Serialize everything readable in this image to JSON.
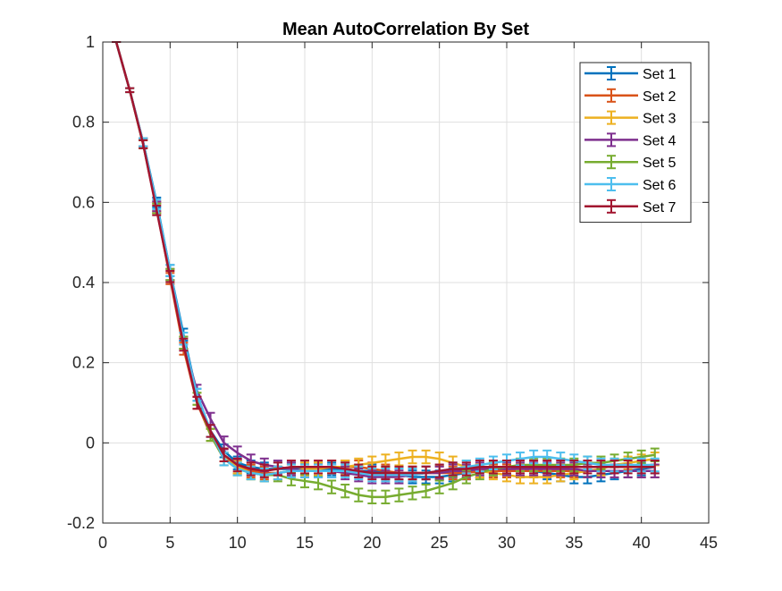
{
  "chart_data": {
    "type": "line",
    "title": "Mean AutoCorrelation By Set",
    "xlabel": "",
    "ylabel": "",
    "xlim": [
      0,
      45
    ],
    "ylim": [
      -0.2,
      1
    ],
    "xticks": [
      0,
      5,
      10,
      15,
      20,
      25,
      30,
      35,
      40,
      45
    ],
    "yticks": [
      -0.2,
      0,
      0.2,
      0.4,
      0.6,
      0.8,
      1
    ],
    "xtick_labels": [
      "0",
      "5",
      "10",
      "15",
      "20",
      "25",
      "30",
      "35",
      "40",
      "45"
    ],
    "ytick_labels": [
      "-0.2",
      "0",
      "0.2",
      "0.4",
      "0.6",
      "0.8",
      "1"
    ],
    "grid": true,
    "error_bars": true,
    "legend_position": "top-right",
    "x": [
      1,
      2,
      3,
      4,
      5,
      6,
      7,
      8,
      9,
      10,
      11,
      12,
      13,
      14,
      15,
      16,
      17,
      18,
      19,
      20,
      21,
      22,
      23,
      24,
      25,
      26,
      27,
      28,
      29,
      30,
      31,
      32,
      33,
      34,
      35,
      36,
      37,
      38,
      39,
      40,
      41
    ],
    "series": [
      {
        "name": "Set 1",
        "color": "#0072BD",
        "values": [
          1,
          0.88,
          0.75,
          0.6,
          0.43,
          0.27,
          0.12,
          0.03,
          -0.02,
          -0.05,
          -0.06,
          -0.065,
          -0.065,
          -0.065,
          -0.065,
          -0.065,
          -0.065,
          -0.065,
          -0.07,
          -0.07,
          -0.075,
          -0.08,
          -0.085,
          -0.085,
          -0.085,
          -0.08,
          -0.075,
          -0.07,
          -0.07,
          -0.07,
          -0.07,
          -0.07,
          -0.075,
          -0.08,
          -0.085,
          -0.085,
          -0.08,
          -0.075,
          -0.07,
          -0.065,
          -0.06
        ],
        "errors": [
          0,
          0.005,
          0.01,
          0.012,
          0.014,
          0.015,
          0.015,
          0.015,
          0.016,
          0.016,
          0.016,
          0.016,
          0.016,
          0.016,
          0.016,
          0.016,
          0.016,
          0.016,
          0.016,
          0.016,
          0.016,
          0.016,
          0.016,
          0.016,
          0.016,
          0.016,
          0.016,
          0.016,
          0.016,
          0.016,
          0.016,
          0.016,
          0.016,
          0.016,
          0.016,
          0.016,
          0.016,
          0.016,
          0.016,
          0.016,
          0.016
        ]
      },
      {
        "name": "Set 2",
        "color": "#D95319",
        "values": [
          1,
          0.88,
          0.745,
          0.585,
          0.41,
          0.235,
          0.1,
          0.02,
          -0.04,
          -0.06,
          -0.07,
          -0.075,
          -0.075,
          -0.07,
          -0.07,
          -0.065,
          -0.06,
          -0.06,
          -0.06,
          -0.065,
          -0.07,
          -0.075,
          -0.075,
          -0.075,
          -0.075,
          -0.075,
          -0.075,
          -0.07,
          -0.07,
          -0.07,
          -0.07,
          -0.07,
          -0.07,
          -0.07,
          -0.07,
          -0.07,
          -0.07,
          -0.07,
          -0.07,
          -0.07,
          -0.07
        ],
        "errors": [
          0,
          0.005,
          0.01,
          0.012,
          0.014,
          0.015,
          0.015,
          0.015,
          0.016,
          0.016,
          0.016,
          0.016,
          0.016,
          0.016,
          0.016,
          0.016,
          0.016,
          0.016,
          0.016,
          0.016,
          0.016,
          0.016,
          0.016,
          0.016,
          0.016,
          0.016,
          0.016,
          0.016,
          0.016,
          0.016,
          0.016,
          0.016,
          0.016,
          0.016,
          0.016,
          0.016,
          0.016,
          0.016,
          0.016,
          0.016,
          0.016
        ]
      },
      {
        "name": "Set 3",
        "color": "#EDB120",
        "values": [
          1,
          0.88,
          0.75,
          0.59,
          0.42,
          0.25,
          0.11,
          0.02,
          -0.03,
          -0.06,
          -0.075,
          -0.08,
          -0.075,
          -0.07,
          -0.065,
          -0.065,
          -0.06,
          -0.06,
          -0.055,
          -0.05,
          -0.045,
          -0.04,
          -0.035,
          -0.035,
          -0.04,
          -0.05,
          -0.06,
          -0.07,
          -0.075,
          -0.08,
          -0.085,
          -0.085,
          -0.085,
          -0.08,
          -0.075,
          -0.07,
          -0.065,
          -0.055,
          -0.05,
          -0.045,
          -0.04
        ],
        "errors": [
          0,
          0.005,
          0.01,
          0.012,
          0.014,
          0.015,
          0.015,
          0.015,
          0.016,
          0.016,
          0.016,
          0.016,
          0.016,
          0.016,
          0.016,
          0.016,
          0.016,
          0.016,
          0.016,
          0.016,
          0.016,
          0.016,
          0.016,
          0.016,
          0.016,
          0.016,
          0.016,
          0.016,
          0.016,
          0.016,
          0.016,
          0.016,
          0.016,
          0.016,
          0.016,
          0.016,
          0.016,
          0.016,
          0.016,
          0.016,
          0.016
        ]
      },
      {
        "name": "Set 4",
        "color": "#7E2F8E",
        "values": [
          1,
          0.88,
          0.75,
          0.59,
          0.42,
          0.25,
          0.13,
          0.06,
          0.0,
          -0.025,
          -0.045,
          -0.055,
          -0.06,
          -0.065,
          -0.07,
          -0.07,
          -0.07,
          -0.075,
          -0.08,
          -0.085,
          -0.085,
          -0.085,
          -0.08,
          -0.075,
          -0.075,
          -0.07,
          -0.07,
          -0.065,
          -0.065,
          -0.065,
          -0.065,
          -0.065,
          -0.065,
          -0.065,
          -0.065,
          -0.07,
          -0.07,
          -0.07,
          -0.07,
          -0.07,
          -0.07
        ],
        "errors": [
          0,
          0.005,
          0.01,
          0.012,
          0.014,
          0.015,
          0.015,
          0.015,
          0.016,
          0.016,
          0.016,
          0.016,
          0.016,
          0.016,
          0.016,
          0.016,
          0.016,
          0.016,
          0.016,
          0.016,
          0.016,
          0.016,
          0.016,
          0.016,
          0.016,
          0.016,
          0.016,
          0.016,
          0.016,
          0.016,
          0.016,
          0.016,
          0.016,
          0.016,
          0.016,
          0.016,
          0.016,
          0.016,
          0.016,
          0.016,
          0.016
        ]
      },
      {
        "name": "Set 5",
        "color": "#77AC30",
        "values": [
          1,
          0.88,
          0.745,
          0.585,
          0.42,
          0.25,
          0.11,
          0.02,
          -0.04,
          -0.065,
          -0.075,
          -0.08,
          -0.08,
          -0.09,
          -0.095,
          -0.1,
          -0.11,
          -0.12,
          -0.13,
          -0.135,
          -0.135,
          -0.13,
          -0.125,
          -0.12,
          -0.11,
          -0.1,
          -0.085,
          -0.075,
          -0.065,
          -0.06,
          -0.055,
          -0.055,
          -0.055,
          -0.055,
          -0.055,
          -0.05,
          -0.05,
          -0.045,
          -0.04,
          -0.035,
          -0.03
        ],
        "errors": [
          0,
          0.005,
          0.01,
          0.012,
          0.014,
          0.015,
          0.015,
          0.015,
          0.016,
          0.016,
          0.016,
          0.016,
          0.016,
          0.016,
          0.016,
          0.016,
          0.016,
          0.016,
          0.016,
          0.016,
          0.016,
          0.016,
          0.016,
          0.016,
          0.016,
          0.016,
          0.016,
          0.016,
          0.016,
          0.016,
          0.016,
          0.016,
          0.016,
          0.016,
          0.016,
          0.016,
          0.016,
          0.016,
          0.016,
          0.016,
          0.016
        ]
      },
      {
        "name": "Set 6",
        "color": "#4DBEEE",
        "values": [
          1,
          0.88,
          0.75,
          0.595,
          0.43,
          0.26,
          0.12,
          0.03,
          -0.04,
          -0.065,
          -0.075,
          -0.08,
          -0.075,
          -0.07,
          -0.07,
          -0.07,
          -0.07,
          -0.07,
          -0.075,
          -0.08,
          -0.08,
          -0.08,
          -0.08,
          -0.075,
          -0.07,
          -0.065,
          -0.06,
          -0.055,
          -0.05,
          -0.045,
          -0.04,
          -0.035,
          -0.035,
          -0.04,
          -0.045,
          -0.05,
          -0.055,
          -0.055,
          -0.055,
          -0.055,
          -0.055
        ],
        "errors": [
          0,
          0.005,
          0.01,
          0.012,
          0.014,
          0.015,
          0.015,
          0.015,
          0.016,
          0.016,
          0.016,
          0.016,
          0.016,
          0.016,
          0.016,
          0.016,
          0.016,
          0.016,
          0.016,
          0.016,
          0.016,
          0.016,
          0.016,
          0.016,
          0.016,
          0.016,
          0.016,
          0.016,
          0.016,
          0.016,
          0.016,
          0.016,
          0.016,
          0.016,
          0.016,
          0.016,
          0.016,
          0.016,
          0.016,
          0.016,
          0.016
        ]
      },
      {
        "name": "Set 7",
        "color": "#A2142F",
        "values": [
          1,
          0.88,
          0.745,
          0.58,
          0.415,
          0.245,
          0.1,
          0.03,
          -0.03,
          -0.055,
          -0.065,
          -0.07,
          -0.065,
          -0.06,
          -0.06,
          -0.06,
          -0.06,
          -0.065,
          -0.07,
          -0.075,
          -0.075,
          -0.075,
          -0.075,
          -0.075,
          -0.07,
          -0.065,
          -0.065,
          -0.06,
          -0.06,
          -0.06,
          -0.06,
          -0.06,
          -0.06,
          -0.06,
          -0.06,
          -0.06,
          -0.06,
          -0.06,
          -0.06,
          -0.06,
          -0.06
        ],
        "errors": [
          0,
          0.005,
          0.01,
          0.012,
          0.014,
          0.015,
          0.015,
          0.015,
          0.016,
          0.016,
          0.016,
          0.016,
          0.016,
          0.016,
          0.016,
          0.016,
          0.016,
          0.016,
          0.016,
          0.016,
          0.016,
          0.016,
          0.016,
          0.016,
          0.016,
          0.016,
          0.016,
          0.016,
          0.016,
          0.016,
          0.016,
          0.016,
          0.016,
          0.016,
          0.016,
          0.016,
          0.016,
          0.016,
          0.016,
          0.016,
          0.016
        ]
      }
    ]
  }
}
